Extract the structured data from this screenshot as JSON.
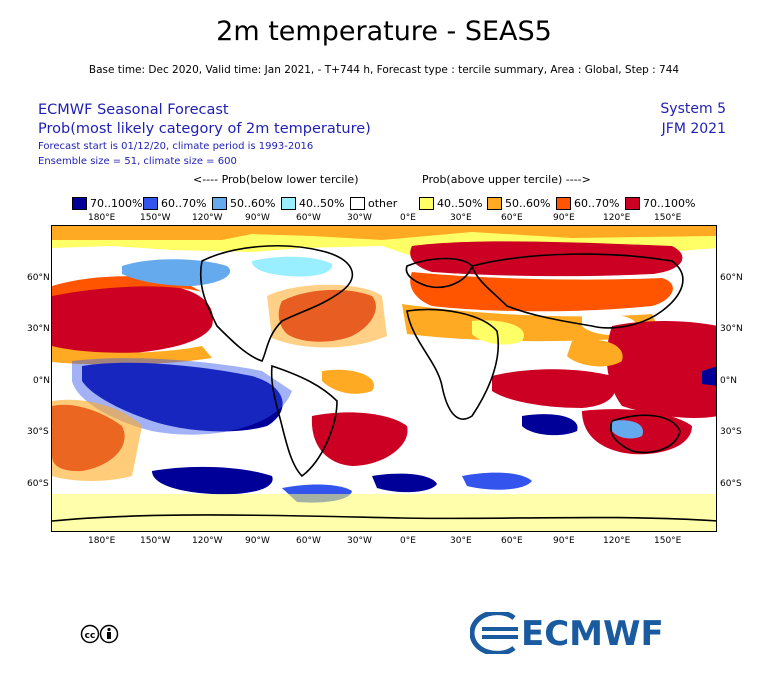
{
  "title": "2m temperature - SEAS5",
  "subtitle": "Base time: Dec 2020, Valid time: Jan 2021, - T+744 h, Forecast type : tercile summary, Area : Global, Step : 744",
  "header_left": {
    "line1": "ECMWF Seasonal Forecast",
    "line2": "Prob(most likely category of 2m temperature)",
    "line3": "Forecast start is 01/12/20, climate period is 1993-2016",
    "line4": "Ensemble size = 51, climate size = 600"
  },
  "header_right": {
    "system": "System 5",
    "period": "JFM 2021"
  },
  "legend": {
    "below_caption": "<---- Prob(below lower tercile)",
    "above_caption": "Prob(above upper tercile) ---->",
    "items": [
      {
        "label": "70..100%",
        "color": "#000099"
      },
      {
        "label": "60..70%",
        "color": "#3355ee"
      },
      {
        "label": "50..60%",
        "color": "#66aaee"
      },
      {
        "label": "40..50%",
        "color": "#99eeff"
      },
      {
        "label": "other",
        "color": "#ffffff"
      },
      {
        "label": "40..50%",
        "color": "#ffff66"
      },
      {
        "label": "50..60%",
        "color": "#ffaa22"
      },
      {
        "label": "60..70%",
        "color": "#ff5500"
      },
      {
        "label": "70..100%",
        "color": "#cc0022"
      }
    ]
  },
  "map": {
    "x_ticks": [
      "180°E",
      "150°W",
      "120°W",
      "90°W",
      "60°W",
      "30°W",
      "0°E",
      "30°E",
      "60°E",
      "90°E",
      "120°E",
      "150°E"
    ],
    "y_ticks": [
      "60°N",
      "30°N",
      "0°N",
      "30°S",
      "60°S"
    ]
  },
  "footer": {
    "license_icon": "creative-commons-by-icon",
    "logo_text": "ECMWF"
  }
}
